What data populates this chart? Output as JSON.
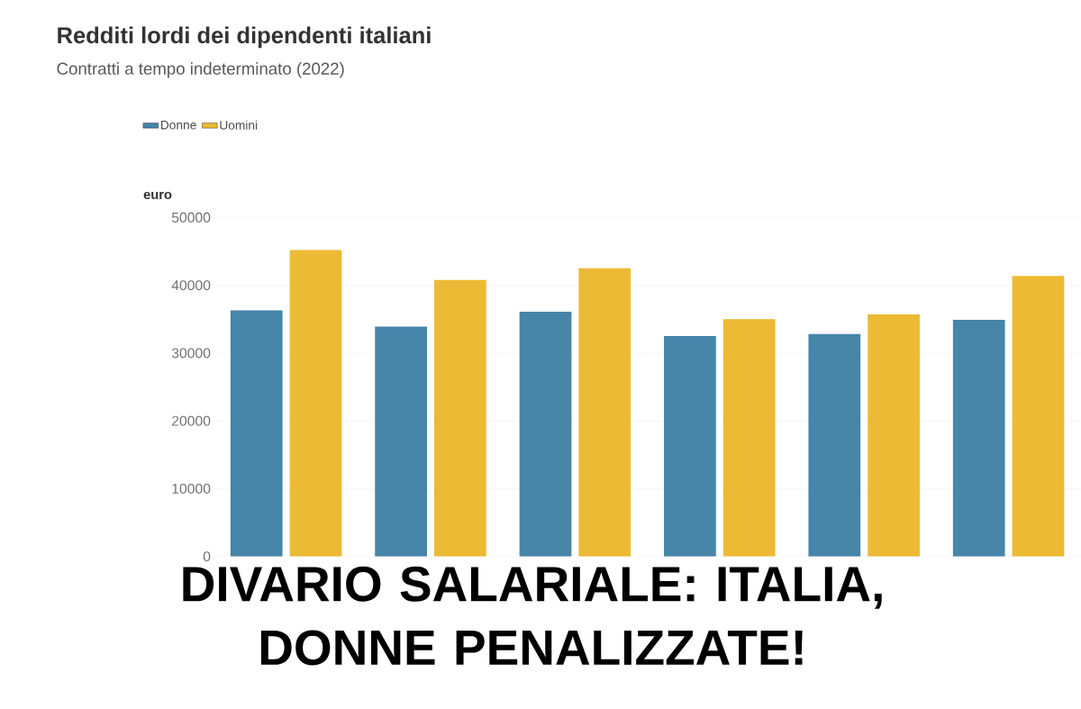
{
  "chart_data": {
    "type": "bar",
    "title": "Redditi lordi dei dipendenti italiani",
    "subtitle": "Contratti a tempo indeterminato (2022)",
    "ylabel": "euro",
    "categories": [
      null,
      null,
      null,
      null,
      null,
      null
    ],
    "series": [
      {
        "name": "Donne",
        "color": "#4785a9",
        "values": [
          36300,
          33900,
          36100,
          32500,
          32800,
          34900
        ]
      },
      {
        "name": "Uomini",
        "color": "#edba35",
        "values": [
          45200,
          40800,
          42500,
          35000,
          35700,
          41400
        ]
      }
    ],
    "ylim": [
      0,
      50000
    ],
    "yticks": [
      0,
      10000,
      20000,
      30000,
      40000,
      50000
    ],
    "grid": "y",
    "legend": "top left",
    "annotations": [
      "DIVARIO SALARIALE: ITALIA, DONNE PENALIZZATE!"
    ]
  }
}
